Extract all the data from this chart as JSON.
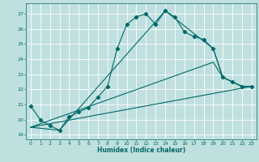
{
  "title": "",
  "xlabel": "Humidex (Indice chaleur)",
  "ylabel": "",
  "bg_color": "#c0e0e0",
  "grid_color": "#ffffff",
  "line_color": "#006868",
  "xlim": [
    -0.5,
    23.5
  ],
  "ylim": [
    18.7,
    27.7
  ],
  "yticks": [
    19,
    20,
    21,
    22,
    23,
    24,
    25,
    26,
    27
  ],
  "xticks": [
    0,
    1,
    2,
    3,
    4,
    5,
    6,
    7,
    8,
    9,
    10,
    11,
    12,
    13,
    14,
    15,
    16,
    17,
    18,
    19,
    20,
    21,
    22,
    23
  ],
  "series": [
    {
      "x": [
        0,
        1,
        2,
        3,
        4,
        5,
        6,
        7,
        8,
        9,
        10,
        11,
        12,
        13,
        14,
        15,
        16,
        17,
        18,
        19,
        20,
        21,
        22,
        23
      ],
      "y": [
        20.9,
        20.0,
        19.6,
        19.3,
        20.2,
        20.5,
        20.8,
        21.5,
        22.2,
        24.7,
        26.3,
        26.8,
        27.0,
        26.3,
        27.2,
        26.8,
        25.8,
        25.5,
        25.3,
        24.7,
        22.8,
        22.5,
        22.2,
        22.2
      ],
      "marker": "D",
      "markersize": 2.2,
      "linewidth": 0.8
    },
    {
      "x": [
        0,
        23
      ],
      "y": [
        19.5,
        22.2
      ],
      "marker": null,
      "markersize": 0,
      "linewidth": 0.8
    },
    {
      "x": [
        0,
        19,
        20,
        22,
        23
      ],
      "y": [
        19.5,
        23.8,
        22.8,
        22.2,
        22.2
      ],
      "marker": null,
      "markersize": 0,
      "linewidth": 0.8
    },
    {
      "x": [
        0,
        3,
        14,
        19,
        20,
        22,
        23
      ],
      "y": [
        19.5,
        19.3,
        27.2,
        24.7,
        22.8,
        22.2,
        22.2
      ],
      "marker": null,
      "markersize": 0,
      "linewidth": 0.8
    }
  ]
}
